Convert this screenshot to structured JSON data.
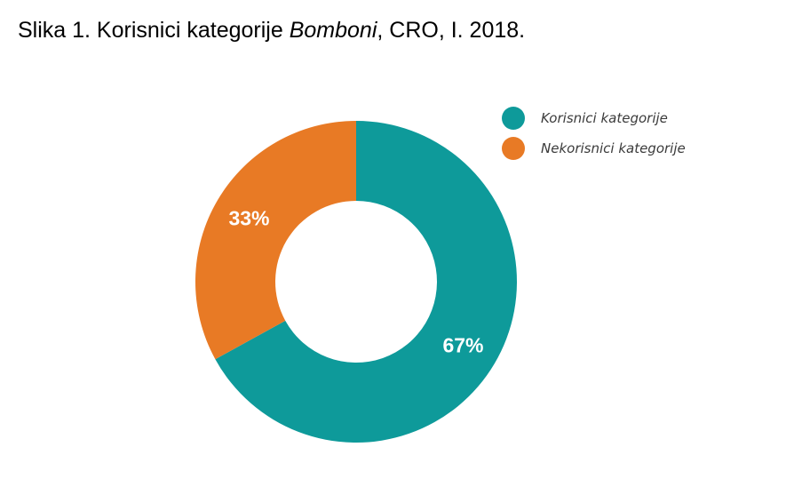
{
  "title": {
    "prefix": "Slika 1. Korisnici kategorije ",
    "italic": "Bomboni",
    "suffix": ", CRO, I. 2018."
  },
  "chart_data": {
    "type": "pie",
    "variant": "donut",
    "title": "Slika 1. Korisnici kategorije Bomboni, CRO, I. 2018.",
    "legend_position": "top-right",
    "slices": [
      {
        "name": "Korisnici kategorije",
        "value": 67,
        "label": "67%",
        "color": "#0e9a9a"
      },
      {
        "name": "Nekorisnici kategorije",
        "value": 33,
        "label": "33%",
        "color": "#e87a25"
      }
    ]
  }
}
